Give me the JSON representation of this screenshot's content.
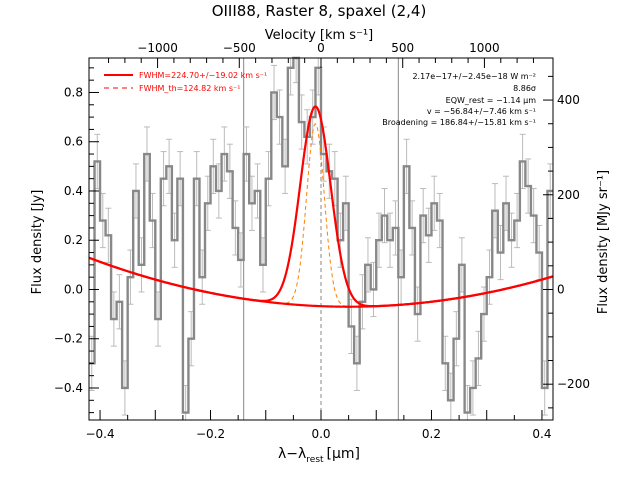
{
  "chart_data": {
    "type": "line",
    "title": "OIII88, Raster 8, spaxel (2,4)",
    "xlabel": "λ−λrest [μm]",
    "xlabel_main": "λ−λ",
    "xlabel_sub": "rest",
    "xlabel_unit": "[μm]",
    "ylabel": "Flux density [Jy]",
    "top_axis_label": "Velocity [km s⁻¹]",
    "right_axis_label": "Flux density [MJy sr⁻¹]",
    "xlim": [
      -0.42,
      0.42
    ],
    "ylim": [
      -0.53,
      0.94
    ],
    "x_ticks": [
      -0.4,
      -0.2,
      0.0,
      0.2,
      0.4
    ],
    "x_tick_labels": [
      "−0.4",
      "−0.2",
      "0.0",
      "0.2",
      "0.4"
    ],
    "y_ticks": [
      -0.4,
      -0.2,
      0.0,
      0.2,
      0.4,
      0.6,
      0.8
    ],
    "y_tick_labels": [
      "−0.4",
      "−0.2",
      "0.0",
      "0.2",
      "0.4",
      "0.6",
      "0.8"
    ],
    "top_ticks_kms": [
      -1000,
      -500,
      0,
      500,
      1000
    ],
    "top_tick_labels": [
      "−1000",
      "−500",
      "0",
      "500",
      "1000"
    ],
    "right_ticks": [
      -200,
      0,
      200,
      400
    ],
    "right_tick_labels": [
      "−200",
      "0",
      "200",
      "400"
    ],
    "velocity_per_um": 3380,
    "right_per_jy": 520,
    "vertical_markers_x": [
      -0.14,
      0.0,
      0.14
    ],
    "legend": [
      {
        "label": "FWHM=224.70+/−19.02 km s⁻¹",
        "style": "solid",
        "color": "#ff0000"
      },
      {
        "label": "FWHM_th=124.82 km s⁻¹",
        "style": "dashed",
        "color": "#ff0000"
      }
    ],
    "annotations": [
      "2.17e−17+/−2.45e−18 W m⁻²",
      "8.86σ",
      "EQW_rest = −1.14 μm",
      "v = −56.84+/−7.46 km s⁻¹",
      "Broadening = 186.84+/−15.81 km s⁻¹"
    ],
    "series": [
      {
        "name": "data",
        "color": "#888888",
        "x": [
          -0.415,
          -0.405,
          -0.395,
          -0.385,
          -0.375,
          -0.365,
          -0.355,
          -0.345,
          -0.335,
          -0.325,
          -0.315,
          -0.305,
          -0.295,
          -0.285,
          -0.275,
          -0.265,
          -0.255,
          -0.245,
          -0.235,
          -0.225,
          -0.215,
          -0.205,
          -0.195,
          -0.185,
          -0.175,
          -0.165,
          -0.155,
          -0.145,
          -0.135,
          -0.125,
          -0.115,
          -0.105,
          -0.095,
          -0.085,
          -0.075,
          -0.065,
          -0.055,
          -0.045,
          -0.035,
          -0.025,
          -0.015,
          -0.005,
          0.005,
          0.015,
          0.025,
          0.035,
          0.045,
          0.055,
          0.065,
          0.075,
          0.085,
          0.095,
          0.105,
          0.115,
          0.125,
          0.135,
          0.145,
          0.155,
          0.165,
          0.175,
          0.185,
          0.195,
          0.205,
          0.215,
          0.225,
          0.235,
          0.245,
          0.255,
          0.265,
          0.275,
          0.285,
          0.295,
          0.305,
          0.315,
          0.325,
          0.335,
          0.345,
          0.355,
          0.365,
          0.375,
          0.385,
          0.395,
          0.405,
          0.415
        ],
        "y": [
          -0.3,
          0.52,
          0.28,
          0.22,
          -0.12,
          -0.05,
          -0.4,
          0.05,
          0.4,
          0.1,
          0.55,
          0.28,
          -0.12,
          0.45,
          0.5,
          0.2,
          0.45,
          -0.5,
          -0.2,
          0.45,
          0.05,
          0.35,
          0.5,
          0.4,
          0.55,
          0.48,
          0.25,
          0.12,
          0.55,
          0.35,
          0.4,
          0.1,
          0.45,
          0.8,
          0.7,
          0.5,
          0.9,
          0.95,
          0.68,
          0.62,
          0.7,
          0.9,
          0.55,
          0.48,
          0.45,
          0.2,
          0.35,
          -0.15,
          -0.3,
          -0.05,
          0.1,
          0.0,
          0.2,
          0.3,
          0.2,
          0.25,
          0.05,
          0.5,
          0.25,
          -0.1,
          0.3,
          0.22,
          0.35,
          0.28,
          -0.3,
          -0.45,
          -0.2,
          0.1,
          -0.5,
          -0.4,
          -0.28,
          -0.1,
          0.05,
          0.32,
          0.15,
          0.35,
          0.2,
          0.28,
          0.52,
          0.42,
          0.3,
          0.15,
          -0.4,
          0.4
        ],
        "err": 0.11
      },
      {
        "name": "total fit",
        "color": "#ff0000",
        "baseline": {
          "center": 0.05,
          "min": -0.07,
          "curvature": 0.9
        },
        "gaussian": {
          "center": -0.01,
          "amplitude": 0.81,
          "sigma": 0.0275
        }
      },
      {
        "name": "FWHM_th",
        "color": "#ff7f00",
        "gaussian": {
          "center": -0.01,
          "amplitude": 0.74,
          "sigma": 0.016
        }
      }
    ]
  }
}
